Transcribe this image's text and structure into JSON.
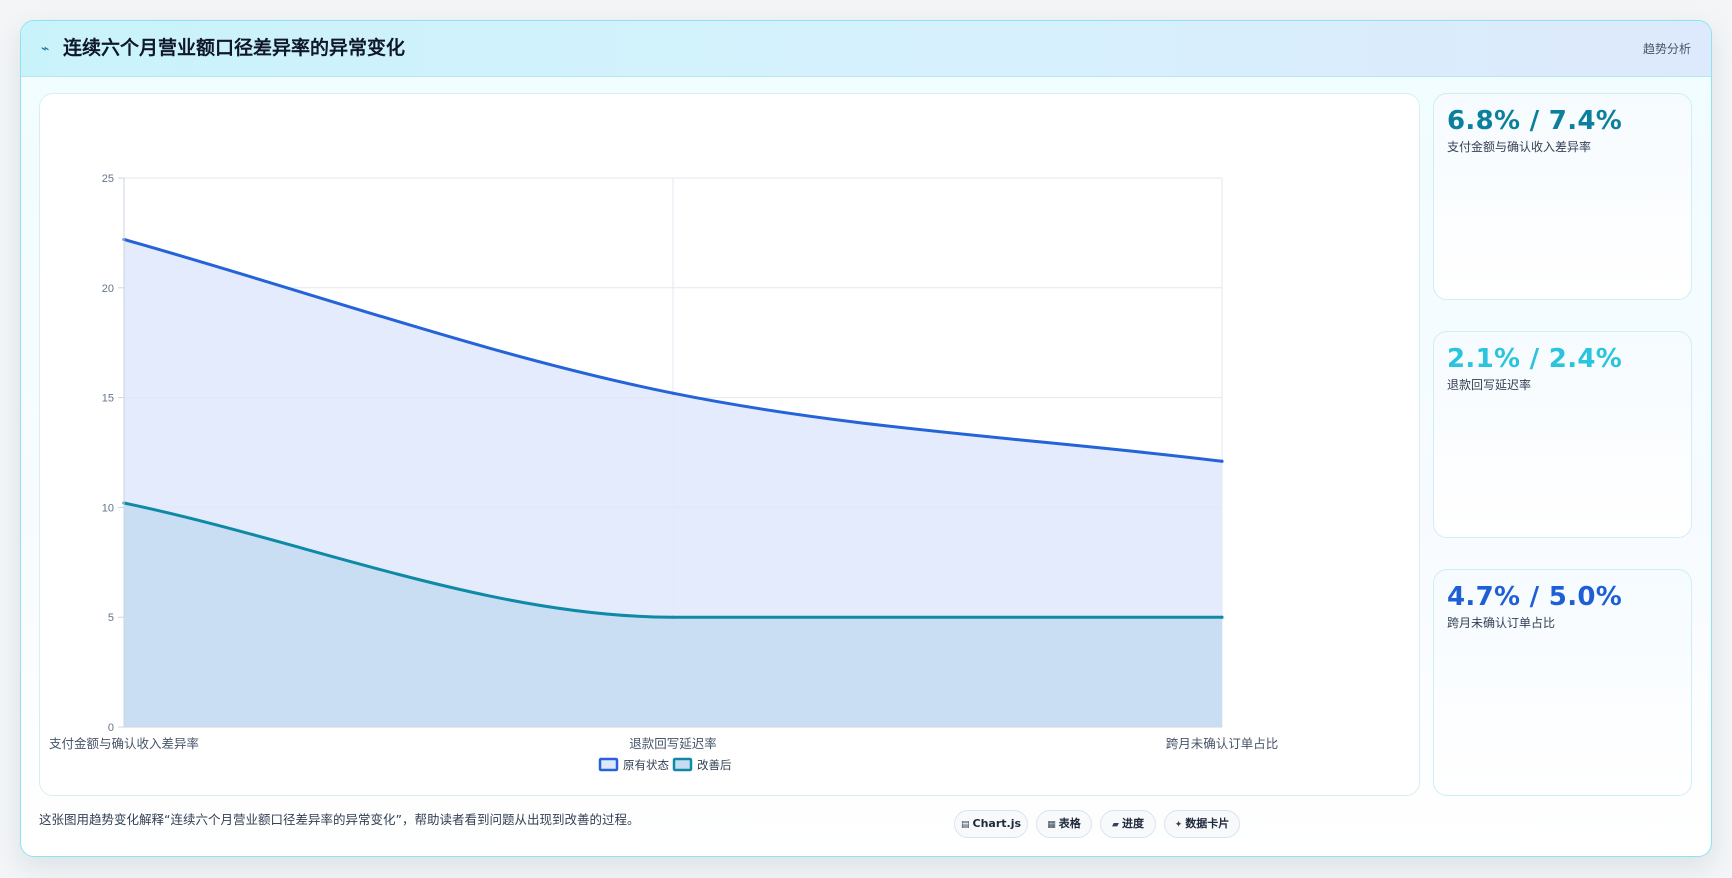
{
  "header": {
    "icon": "trend-line-icon",
    "title": "连续六个月营业额口径差异率的异常变化",
    "tag": "趋势分析"
  },
  "chart_data": {
    "type": "area",
    "categories": [
      "支付金额与确认收入差异率",
      "退款回写延迟率",
      "跨月未确认订单占比"
    ],
    "series": [
      {
        "name": "原有状态",
        "values": [
          22.2,
          15.2,
          12.1
        ],
        "color": "#2563d9",
        "fill": "#dfe8fb"
      },
      {
        "name": "改善后",
        "values": [
          10.2,
          5.0,
          5.0
        ],
        "color": "#0e8aa6",
        "fill": "#c5dcf1"
      }
    ],
    "ylim": [
      0,
      25
    ],
    "yticks": [
      0,
      5,
      10,
      15,
      20,
      25
    ],
    "grid": true,
    "legend": "bottom"
  },
  "cards": [
    {
      "value": "6.8% / 7.4%",
      "label": "支付金额与确认收入差异率",
      "color": "#0b7f9b"
    },
    {
      "value": "2.1% / 2.4%",
      "label": "退款回写延迟率",
      "color": "#2bc4dd"
    },
    {
      "value": "4.7% / 5.0%",
      "label": "跨月未确认订单占比",
      "color": "#1f5fd6"
    }
  ],
  "caption": "这张图用趋势变化解释“连续六个月营业额口径差异率的异常变化”，帮助读者看到问题从出现到改善的过程。",
  "chips": [
    {
      "icon": "chart-icon",
      "glyph": "▤",
      "label": "Chart.js"
    },
    {
      "icon": "table-icon",
      "glyph": "▦",
      "label": "表格"
    },
    {
      "icon": "progress-icon",
      "glyph": "▰",
      "label": "进度"
    },
    {
      "icon": "sparkle-icon",
      "glyph": "✦",
      "label": "数据卡片"
    }
  ]
}
